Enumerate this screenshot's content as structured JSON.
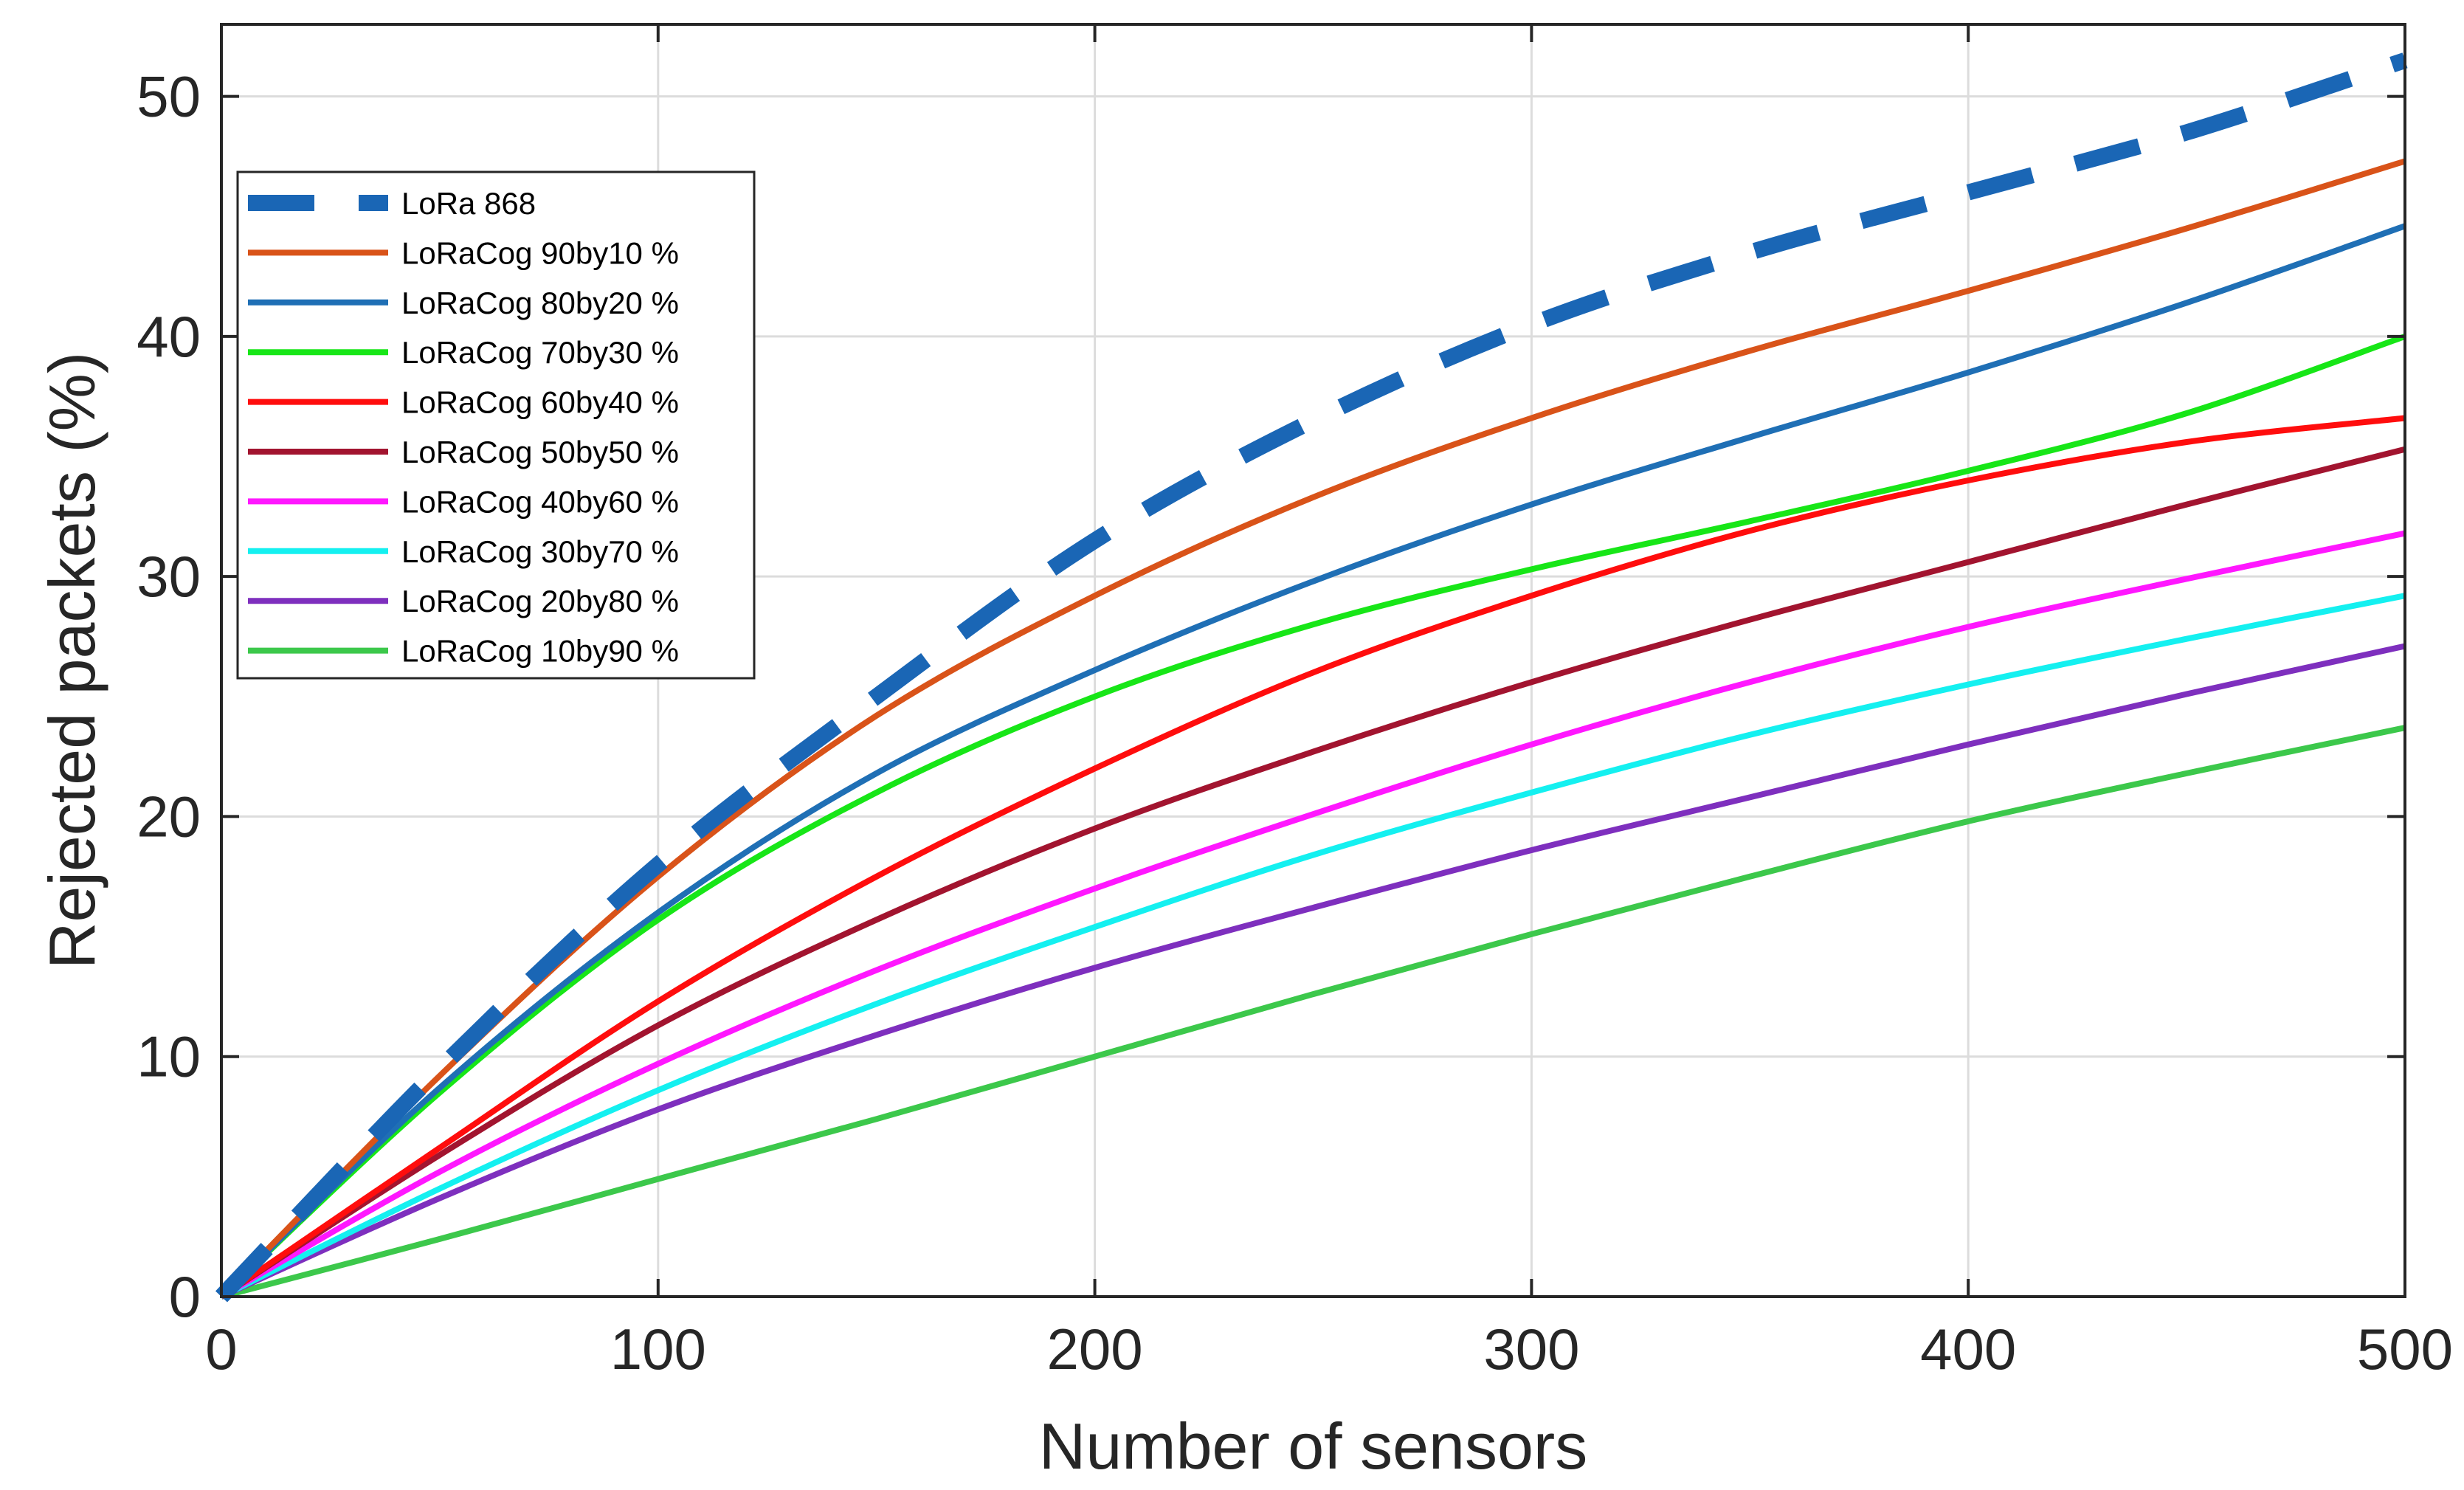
{
  "chart_data": {
    "type": "line",
    "title": "",
    "xlabel": "Number of sensors",
    "ylabel": "Rejected packets (%)",
    "xlim": [
      0,
      500
    ],
    "ylim": [
      0,
      53
    ],
    "xticks": [
      0,
      100,
      200,
      300,
      400,
      500
    ],
    "yticks": [
      0,
      10,
      20,
      30,
      40,
      50
    ],
    "grid": true,
    "legend_position": "upper-left",
    "x": [
      0,
      50,
      100,
      150,
      200,
      250,
      300,
      350,
      400,
      450,
      500
    ],
    "series": [
      {
        "name": "LoRa 868",
        "color": "#1a66b5",
        "style": "dashed",
        "values": [
          0,
          9.5,
          18.0,
          25.0,
          31.5,
          36.5,
          40.5,
          43.5,
          46.0,
          48.5,
          51.5
        ]
      },
      {
        "name": "LoRaCog 90by10 %",
        "color": "#d95319",
        "style": "solid",
        "values": [
          0,
          9.2,
          17.5,
          24.2,
          29.2,
          33.3,
          36.6,
          39.4,
          41.9,
          44.5,
          47.3
        ]
      },
      {
        "name": "LoRaCog 80by20 %",
        "color": "#1f6fb5",
        "style": "solid",
        "values": [
          0,
          8.7,
          16.0,
          21.8,
          26.1,
          29.8,
          33.0,
          35.8,
          38.5,
          41.4,
          44.6
        ]
      },
      {
        "name": "LoRaCog 70by30 %",
        "color": "#17e617",
        "style": "solid",
        "values": [
          0,
          8.5,
          15.7,
          21.0,
          25.0,
          28.0,
          30.3,
          32.3,
          34.4,
          36.8,
          40.0
        ]
      },
      {
        "name": "LoRaCog 60by40 %",
        "color": "#ff0d0d",
        "style": "solid",
        "values": [
          0,
          6.2,
          12.3,
          17.5,
          22.0,
          26.0,
          29.2,
          31.9,
          34.0,
          35.6,
          36.6
        ]
      },
      {
        "name": "LoRaCog 50by50 %",
        "color": "#a2142f",
        "style": "solid",
        "values": [
          0,
          5.9,
          11.3,
          15.7,
          19.5,
          22.7,
          25.6,
          28.2,
          30.6,
          33.0,
          35.3
        ]
      },
      {
        "name": "LoRaCog 40by60 %",
        "color": "#ff17ff",
        "style": "solid",
        "values": [
          0,
          5.2,
          9.7,
          13.6,
          17.0,
          20.1,
          23.0,
          25.6,
          27.9,
          29.9,
          31.8
        ]
      },
      {
        "name": "LoRaCog 30by70 %",
        "color": "#14f0f0",
        "style": "solid",
        "values": [
          0,
          4.5,
          8.6,
          12.2,
          15.4,
          18.4,
          21.0,
          23.4,
          25.5,
          27.4,
          29.2
        ]
      },
      {
        "name": "LoRaCog 20by80 %",
        "color": "#7e2fbe",
        "style": "solid",
        "values": [
          0,
          4.1,
          7.8,
          10.9,
          13.7,
          16.2,
          18.6,
          20.8,
          23.0,
          25.1,
          27.1
        ]
      },
      {
        "name": "LoRaCog 10by90 %",
        "color": "#3cc84b",
        "style": "solid",
        "values": [
          0,
          2.4,
          4.9,
          7.4,
          10.0,
          12.6,
          15.1,
          17.5,
          19.8,
          21.8,
          23.7
        ]
      }
    ]
  }
}
